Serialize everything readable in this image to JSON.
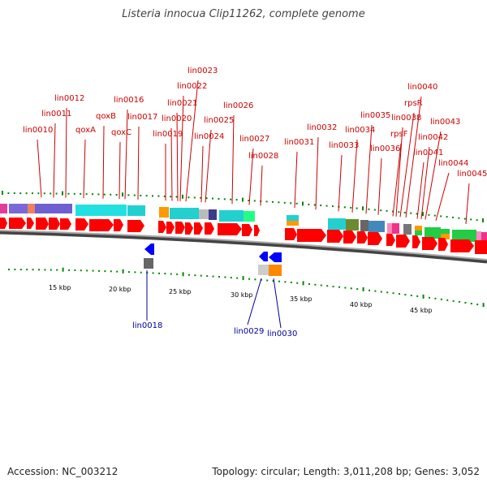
{
  "title": "Listeria innocua Clip11262, complete genome",
  "footer": {
    "accession": "Accession: NC_003212",
    "summary": "Topology: circular; Length: 3,011,208 bp; Genes: 3,052"
  },
  "colors": {
    "forward_gene": "#ff0000",
    "reverse_gene": "#0000ff",
    "top_label": "#cc0000",
    "bottom_label": "#000099",
    "tick": "#008800",
    "backbone": "#777777"
  },
  "scale_labels": [
    "15 kbp",
    "20 kbp",
    "25 kbp",
    "30 kbp",
    "35 kbp",
    "40 kbp",
    "45 kbp"
  ],
  "top_labels": [
    "lin0010",
    "lin0011",
    "lin0012",
    "qoxA",
    "qoxB",
    "qoxC",
    "lin0016",
    "lin0017",
    "lin0019",
    "lin0020",
    "lin0021",
    "lin0022",
    "lin0023",
    "lin0024",
    "lin0025",
    "lin0026",
    "lin0027",
    "lin0028",
    "lin0031",
    "lin0032",
    "lin0033",
    "lin0034",
    "lin0035",
    "lin0036",
    "rpsF",
    "lin0038",
    "rpsR",
    "lin0040",
    "lin0041",
    "lin0042",
    "lin0043",
    "lin0044",
    "lin0045"
  ],
  "bottom_labels": [
    "lin0018",
    "lin0029",
    "lin0030"
  ]
}
